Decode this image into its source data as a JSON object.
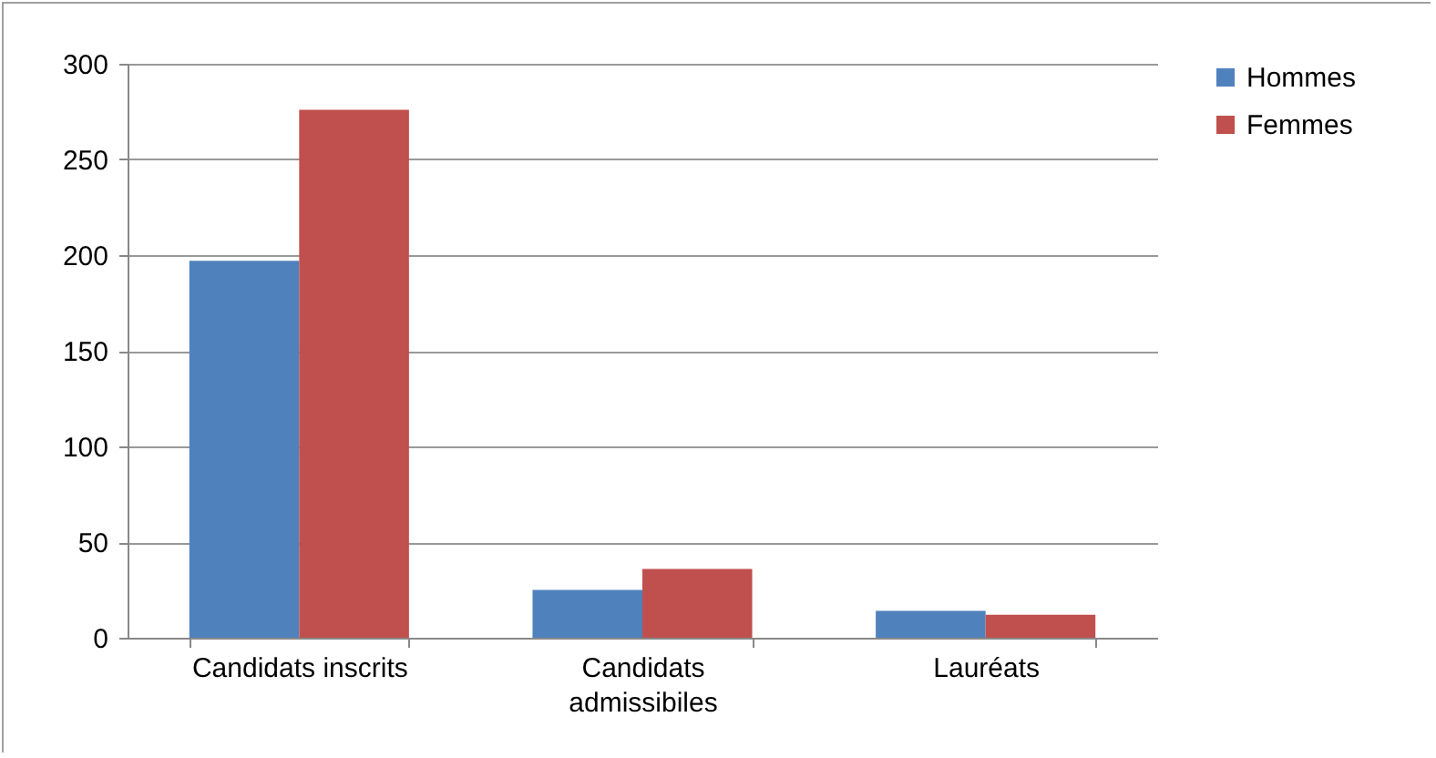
{
  "chart_data": {
    "type": "bar",
    "categories": [
      "Candidats inscrits",
      "Candidats admissibiles",
      "Lauréats"
    ],
    "series": [
      {
        "name": "Hommes",
        "color": "#4f81bd",
        "values": [
          197,
          25,
          14
        ]
      },
      {
        "name": "Femmes",
        "color": "#c0504d",
        "values": [
          276,
          36,
          12
        ]
      }
    ],
    "ylim": [
      0,
      300
    ],
    "yticks": [
      0,
      50,
      100,
      150,
      200,
      250,
      300
    ],
    "grid": "y",
    "legend": "right"
  }
}
